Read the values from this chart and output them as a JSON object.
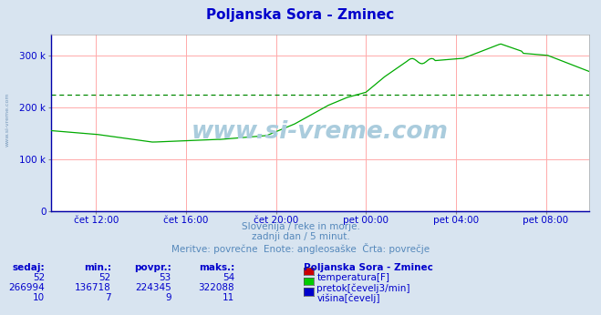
{
  "title": "Poljanska Sora - Zminec",
  "title_color": "#0000cc",
  "bg_color": "#d8e4f0",
  "plot_bg_color": "#ffffff",
  "grid_color": "#ffaaaa",
  "grid_color_minor": "#eecccc",
  "x_labels": [
    "čet 12:00",
    "čet 16:00",
    "čet 20:00",
    "pet 00:00",
    "pet 04:00",
    "pet 08:00"
  ],
  "y_tick_labels": [
    "0",
    "100 k",
    "200 k",
    "300 k"
  ],
  "y_tick_vals": [
    0,
    100,
    200,
    300
  ],
  "ylim": [
    0,
    340
  ],
  "avg_line_y": 224.345,
  "subtitle_lines": [
    "Slovenija / reke in morje.",
    "zadnji dan / 5 minut.",
    "Meritve: povrečne  Enote: angleosaške  Črta: povrečje"
  ],
  "subtitle_color": "#5588bb",
  "table_headers": [
    "sedaj:",
    "min.:",
    "povpr.:",
    "maks.:"
  ],
  "table_header_color": "#0000cc",
  "table_rows": [
    [
      "52",
      "52",
      "53",
      "54",
      "#cc0000",
      "temperatura[F]"
    ],
    [
      "266994",
      "136718",
      "224345",
      "322088",
      "#00cc00",
      "pretok[čevelj3/min]"
    ],
    [
      "10",
      "7",
      "9",
      "11",
      "#0000cc",
      "višina[čevelj]"
    ]
  ],
  "table_row_color": "#0000cc",
  "station_label": "Poljanska Sora - Zminec",
  "station_label_color": "#0000cc",
  "watermark": "www.si-vreme.com",
  "watermark_color": "#aaccdd",
  "line_color": "#00aa00",
  "temp_line_color": "#cc0000",
  "height_line_color": "#0000cc",
  "avg_dashed_color": "#008800",
  "n_points": 288,
  "x_tick_indices": [
    24,
    72,
    120,
    168,
    216,
    264
  ]
}
